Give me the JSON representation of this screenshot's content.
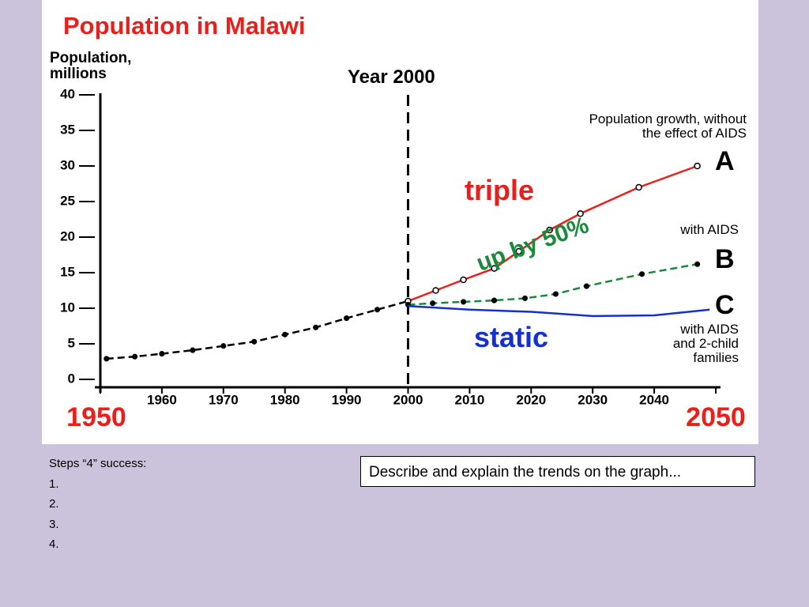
{
  "chart_data": {
    "type": "line",
    "title": "Population in Malawi",
    "ylabel": "Population,\nmillions",
    "xlim": [
      1950,
      2050
    ],
    "xticks": [
      1950,
      1960,
      1970,
      1980,
      1990,
      2000,
      2010,
      2020,
      2030,
      2040,
      2050
    ],
    "ylim": [
      0,
      40
    ],
    "yticks": [
      0,
      5,
      10,
      15,
      20,
      25,
      30,
      35,
      40
    ],
    "vline": 2000,
    "annotations": [
      "Year 2000",
      "Population growth, without\nthe effect of AIDS",
      "triple",
      "with AIDS",
      "up by 50%",
      "static",
      "with AIDS\nand 2-child\nfamilies"
    ],
    "series": [
      {
        "color": "#000000",
        "dashed": true,
        "marker": "dot",
        "x": [
          1951,
          1955.6,
          1960,
          1965,
          1970,
          1975,
          1980,
          1985,
          1990,
          1995,
          2000
        ],
        "values": [
          2.9,
          3.2,
          3.6,
          4.1,
          4.7,
          5.3,
          6.3,
          7.3,
          8.6,
          9.8,
          11.0
        ]
      },
      {
        "name": "A",
        "color": "#e8201c",
        "dashed": false,
        "marker": "circle",
        "x": [
          2000,
          2004.5,
          2009,
          2014,
          2018,
          2023,
          2028,
          2037.5,
          2047
        ],
        "values": [
          11.0,
          12.5,
          14.0,
          15.6,
          18.0,
          21.0,
          23.3,
          27.0,
          30.0
        ]
      },
      {
        "name": "B",
        "color": "#1a8a3a",
        "dashed": true,
        "marker": "dot",
        "x": [
          2000,
          2004,
          2009,
          2014,
          2019,
          2024,
          2029,
          2038,
          2047
        ],
        "values": [
          10.5,
          10.7,
          10.9,
          11.1,
          11.4,
          12.0,
          13.1,
          14.8,
          16.2
        ]
      },
      {
        "name": "C",
        "color": "#1530d0",
        "dashed": false,
        "marker": "none",
        "x": [
          2000,
          2010,
          2020,
          2030,
          2040,
          2049
        ],
        "values": [
          10.3,
          9.8,
          9.5,
          8.9,
          9.0,
          9.8
        ]
      }
    ]
  },
  "slide": {
    "steps_title": "Steps “4” success:",
    "steps": [
      "1.",
      "2.",
      "3.",
      "4."
    ],
    "task": "Describe and explain the trends on the graph..."
  }
}
